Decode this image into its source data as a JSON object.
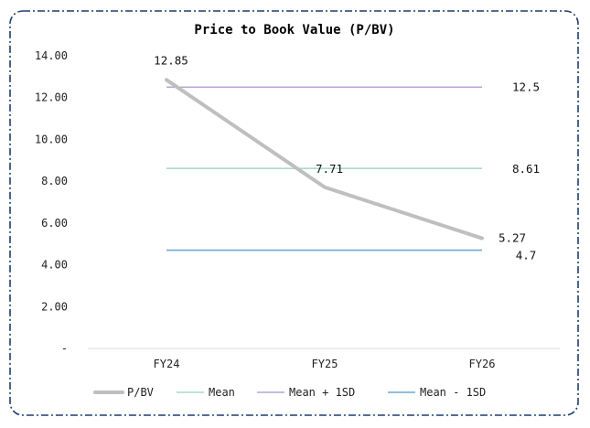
{
  "colors": {
    "border": "#1f3d6b",
    "axis": "#d9d9d9",
    "pbv": "#bfbfbf",
    "mean": "#a8dcc8",
    "mean_plus": "#b4a7d6",
    "mean_minus": "#6aa9d4"
  },
  "chart_data": {
    "type": "line",
    "title": "Price to Book Value (P/BV)",
    "categories": [
      "FY24",
      "FY25",
      "FY26"
    ],
    "ylim": [
      0,
      14
    ],
    "y_ticks": [
      0,
      2,
      4,
      6,
      8,
      10,
      12,
      14
    ],
    "y_tick_labels": [
      "-",
      "2.00",
      "4.00",
      "6.00",
      "8.00",
      "10.00",
      "12.00",
      "14.00"
    ],
    "grid": false,
    "legend_position": "bottom",
    "series": [
      {
        "name": "P/BV",
        "values": [
          12.85,
          7.71,
          5.27
        ],
        "labels": [
          "12.85",
          "7.71",
          "5.27"
        ],
        "color_key": "pbv"
      },
      {
        "name": "Mean",
        "values": [
          8.61,
          8.61,
          8.61
        ],
        "end_label": "8.61",
        "color_key": "mean"
      },
      {
        "name": "Mean + 1SD",
        "values": [
          12.5,
          12.5,
          12.5
        ],
        "end_label": "12.5",
        "color_key": "mean_plus"
      },
      {
        "name": "Mean - 1SD",
        "values": [
          4.7,
          4.7,
          4.7
        ],
        "end_label": "4.7",
        "color_key": "mean_minus"
      }
    ]
  }
}
